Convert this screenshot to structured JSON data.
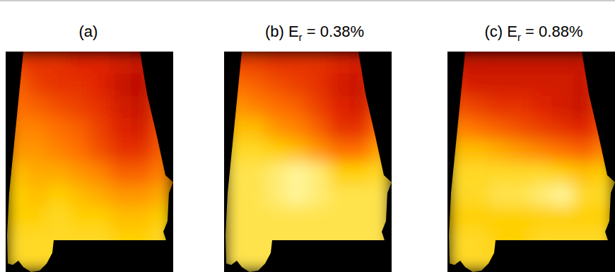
{
  "chart_data": [
    {
      "type": "heatmap",
      "title": {
        "main": "(a)"
      },
      "tick_labels": false,
      "value_range": [
        0,
        1
      ],
      "cells": [
        [
          0.35,
          0.3,
          0.3,
          0.25,
          0.25,
          0.2,
          0.15,
          0.2
        ],
        [
          0.45,
          0.35,
          0.3,
          0.3,
          0.25,
          0.15,
          0.1,
          0.3
        ],
        [
          0.5,
          0.45,
          0.4,
          0.35,
          0.3,
          0.2,
          0.15,
          0.35
        ],
        [
          0.55,
          0.55,
          0.5,
          0.45,
          0.35,
          0.25,
          0.2,
          0.4
        ],
        [
          0.6,
          0.6,
          0.55,
          0.5,
          0.4,
          0.3,
          0.3,
          0.45
        ],
        [
          0.7,
          0.65,
          0.65,
          0.6,
          0.55,
          0.45,
          0.45,
          0.55
        ],
        [
          0.75,
          0.7,
          0.75,
          0.7,
          0.65,
          0.6,
          0.6,
          0.65
        ],
        [
          0.75,
          0.75,
          0.8,
          0.75,
          0.75,
          0.7,
          0.7,
          0.75
        ],
        [
          0.8,
          0.8,
          0.8,
          0.8,
          0.8,
          0.75,
          0.75,
          0.8
        ],
        [
          0.8,
          0.8,
          0.8,
          0.8,
          0.8,
          0.8,
          0.8,
          0.8
        ]
      ]
    },
    {
      "type": "heatmap",
      "title": {
        "main": "(b) E",
        "subscript": "r",
        "rest": " = 0.38%"
      },
      "tick_labels": false,
      "value_range": [
        0,
        1
      ],
      "cells": [
        [
          0.35,
          0.35,
          0.3,
          0.3,
          0.3,
          0.25,
          0.2,
          0.3
        ],
        [
          0.5,
          0.45,
          0.4,
          0.35,
          0.3,
          0.2,
          0.15,
          0.35
        ],
        [
          0.6,
          0.55,
          0.5,
          0.45,
          0.35,
          0.25,
          0.2,
          0.4
        ],
        [
          0.7,
          0.7,
          0.6,
          0.55,
          0.45,
          0.3,
          0.3,
          0.5
        ],
        [
          0.8,
          0.8,
          0.75,
          0.7,
          0.6,
          0.5,
          0.5,
          0.65
        ],
        [
          0.85,
          0.85,
          0.9,
          0.95,
          0.9,
          0.75,
          0.75,
          0.8
        ],
        [
          0.85,
          0.85,
          0.9,
          0.95,
          0.9,
          0.85,
          0.85,
          0.85
        ],
        [
          0.85,
          0.85,
          0.85,
          0.85,
          0.85,
          0.85,
          0.85,
          0.85
        ],
        [
          0.85,
          0.85,
          0.85,
          0.85,
          0.85,
          0.85,
          0.85,
          0.85
        ],
        [
          0.85,
          0.85,
          0.85,
          0.85,
          0.85,
          0.85,
          0.85,
          0.85
        ]
      ]
    },
    {
      "type": "heatmap",
      "title": {
        "main": "(c) E",
        "subscript": "r",
        "rest": " = 0.88%"
      },
      "tick_labels": false,
      "value_range": [
        0,
        1
      ],
      "cells": [
        [
          0.15,
          0.15,
          0.15,
          0.15,
          0.15,
          0.15,
          0.15,
          0.25
        ],
        [
          0.25,
          0.2,
          0.2,
          0.2,
          0.2,
          0.2,
          0.15,
          0.3
        ],
        [
          0.4,
          0.35,
          0.3,
          0.3,
          0.25,
          0.2,
          0.15,
          0.35
        ],
        [
          0.55,
          0.5,
          0.45,
          0.4,
          0.35,
          0.3,
          0.25,
          0.4
        ],
        [
          0.7,
          0.7,
          0.65,
          0.6,
          0.55,
          0.5,
          0.45,
          0.55
        ],
        [
          0.8,
          0.8,
          0.8,
          0.8,
          0.8,
          0.75,
          0.7,
          0.75
        ],
        [
          0.8,
          0.8,
          0.85,
          0.85,
          0.9,
          0.95,
          0.8,
          0.8
        ],
        [
          0.75,
          0.75,
          0.75,
          0.75,
          0.75,
          0.75,
          0.75,
          0.75
        ],
        [
          0.8,
          0.8,
          0.75,
          0.75,
          0.8,
          0.8,
          0.8,
          0.8
        ],
        [
          0.8,
          0.8,
          0.8,
          0.8,
          0.8,
          0.8,
          0.8,
          0.8
        ]
      ]
    }
  ]
}
